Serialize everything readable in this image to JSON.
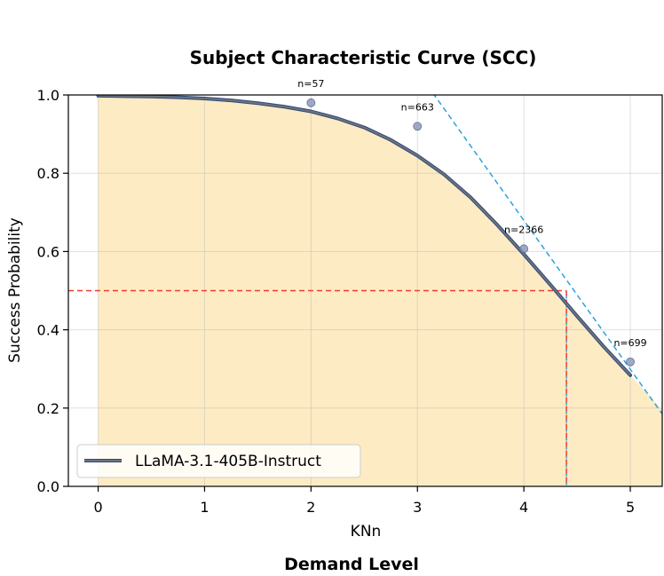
{
  "chart_data": {
    "type": "line",
    "title": "Subject Characteristic Curve (SCC)",
    "xlabel": "KNn",
    "supxlabel": "Demand Level",
    "ylabel": "Success Probability",
    "xlim": [
      -0.28,
      5.3
    ],
    "ylim": [
      0.0,
      1.0
    ],
    "xticks": [
      0,
      1,
      2,
      3,
      4,
      5
    ],
    "yticks": [
      0.0,
      0.2,
      0.4,
      0.6,
      0.8,
      1.0
    ],
    "xtick_labels": [
      "0",
      "1",
      "2",
      "3",
      "4",
      "5"
    ],
    "ytick_labels": [
      "0.0",
      "0.2",
      "0.4",
      "0.6",
      "0.8",
      "1.0"
    ],
    "grid": true,
    "legend_position": "bottom-left",
    "series": [
      {
        "name": "LLaMA-3.1-405B-Instruct",
        "x": [
          0,
          0.25,
          0.5,
          0.75,
          1.0,
          1.25,
          1.5,
          1.75,
          2.0,
          2.25,
          2.5,
          2.75,
          3.0,
          3.25,
          3.5,
          3.75,
          4.0,
          4.25,
          4.5,
          4.75,
          5.0
        ],
        "y": [
          0.998,
          0.997,
          0.996,
          0.994,
          0.991,
          0.986,
          0.979,
          0.97,
          0.958,
          0.94,
          0.917,
          0.885,
          0.845,
          0.797,
          0.738,
          0.668,
          0.593,
          0.515,
          0.435,
          0.357,
          0.284
        ],
        "color": "#2f4b7c"
      }
    ],
    "observed_points": [
      {
        "x": 2,
        "y": 0.98,
        "label": "n=57"
      },
      {
        "x": 3,
        "y": 0.92,
        "label": "n=663"
      },
      {
        "x": 4,
        "y": 0.607,
        "label": "n=2366"
      },
      {
        "x": 5,
        "y": 0.318,
        "label": "n=699"
      }
    ],
    "ability_x": 4.4,
    "ability_y": 0.5,
    "tangent": {
      "x0": 3.0,
      "y0": 1.06,
      "x1": 5.3,
      "y1": 0.185
    },
    "colors": {
      "fill": "#fdebc4",
      "curve": "#2f4b7c",
      "curve_overlay": "#7a7a7a",
      "points": "#7f8fb0",
      "ref_red": "#f03c2e",
      "ref_blue": "#2aa3dd"
    }
  }
}
